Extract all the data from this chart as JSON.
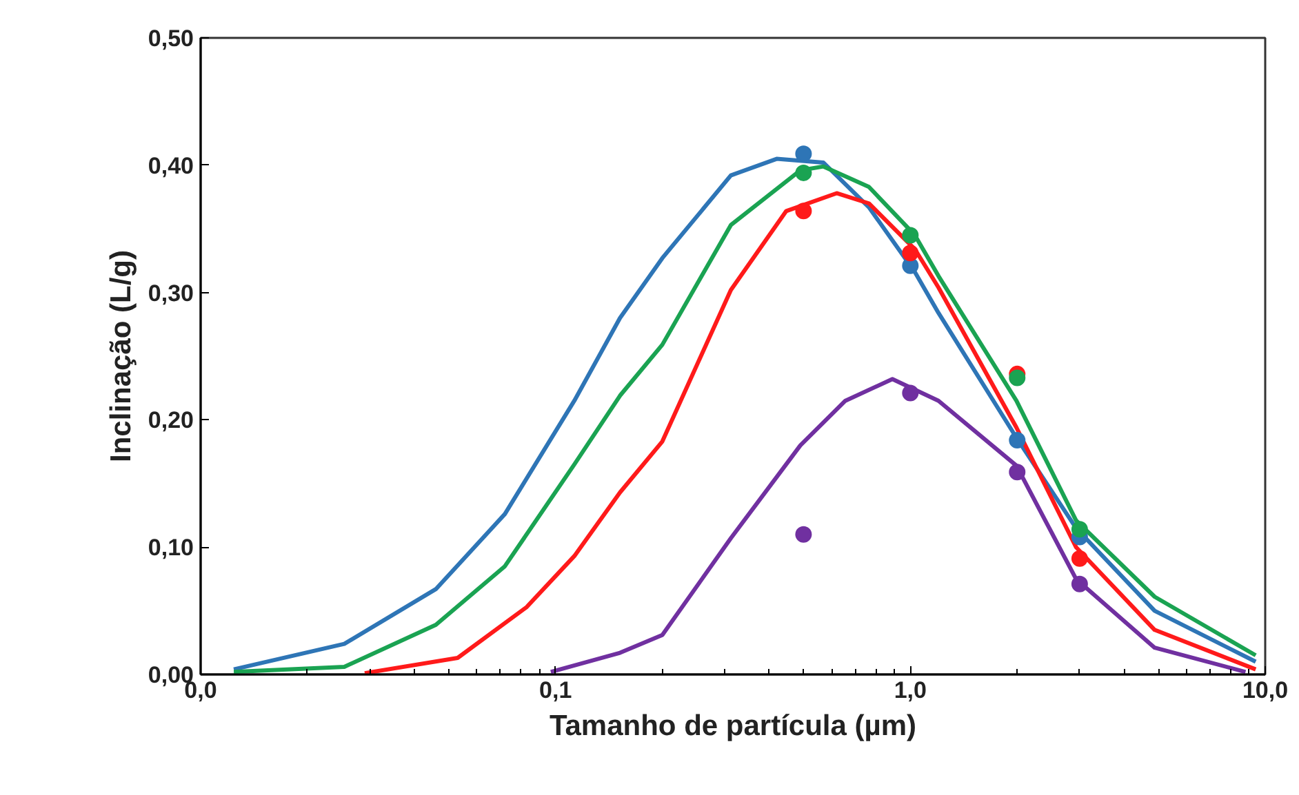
{
  "chart_data": {
    "type": "scatter",
    "xlabel": "Tamanho de partícula (µm)",
    "ylabel": "Inclinação (L/g)",
    "log": "x",
    "grid": false,
    "marker": "circle",
    "xlim": [
      0.01,
      10
    ],
    "xticks": [
      {
        "value": 0.01,
        "label": "0,0"
      },
      {
        "value": 0.1,
        "label": "0,1"
      },
      {
        "value": 1,
        "label": "1,0"
      },
      {
        "value": 10,
        "label": "10,0"
      }
    ],
    "ylim": [
      0,
      0.5
    ],
    "yticks": [
      {
        "value": 0,
        "label": "0,00"
      },
      {
        "value": 0.1,
        "label": "0,10"
      },
      {
        "value": 0.2,
        "label": "0,20"
      },
      {
        "value": 0.3,
        "label": "0,30"
      },
      {
        "value": 0.4,
        "label": "0,40"
      },
      {
        "value": 0.5,
        "label": "0,50"
      }
    ],
    "series": [
      {
        "type": "line",
        "color": "#2e75b6",
        "marker": "none",
        "line_style": "solid",
        "x": [
          0.0124,
          0.0254,
          0.046,
          0.072,
          0.113,
          0.152,
          0.2,
          0.312,
          0.42,
          0.569,
          0.764,
          1.03,
          1.2,
          1.99,
          2.93,
          4.88,
          9.4
        ],
        "values": [
          0.004,
          0.024,
          0.067,
          0.126,
          0.215,
          0.28,
          0.327,
          0.392,
          0.405,
          0.402,
          0.367,
          0.316,
          0.284,
          0.186,
          0.115,
          0.05,
          0.01
        ]
      },
      {
        "type": "line",
        "color": "#1aa352",
        "marker": "none",
        "line_style": "solid",
        "x": [
          0.0124,
          0.0254,
          0.046,
          0.072,
          0.113,
          0.152,
          0.2,
          0.312,
          0.49,
          0.569,
          0.764,
          1.03,
          1.2,
          1.99,
          2.93,
          4.88,
          9.4
        ],
        "values": [
          0.002,
          0.006,
          0.039,
          0.085,
          0.165,
          0.219,
          0.259,
          0.353,
          0.396,
          0.399,
          0.383,
          0.345,
          0.313,
          0.215,
          0.121,
          0.061,
          0.015
        ]
      },
      {
        "type": "line",
        "color": "#ff1a1a",
        "marker": "none",
        "line_style": "solid",
        "x": [
          0.029,
          0.053,
          0.083,
          0.113,
          0.152,
          0.2,
          0.312,
          0.447,
          0.62,
          0.764,
          1.03,
          1.2,
          1.99,
          2.93,
          4.88,
          9.4
        ],
        "values": [
          0.001,
          0.013,
          0.053,
          0.093,
          0.143,
          0.183,
          0.302,
          0.364,
          0.378,
          0.37,
          0.334,
          0.304,
          0.194,
          0.1,
          0.035,
          0.004
        ]
      },
      {
        "type": "line",
        "color": "#7030a0",
        "marker": "none",
        "line_style": "solid",
        "x": [
          0.097,
          0.152,
          0.2,
          0.312,
          0.49,
          0.656,
          0.89,
          1.2,
          1.99,
          2.93,
          4.88,
          8.8
        ],
        "values": [
          0.002,
          0.017,
          0.031,
          0.107,
          0.18,
          0.215,
          0.232,
          0.215,
          0.164,
          0.075,
          0.021,
          0.002
        ]
      },
      {
        "color": "#2e75b6",
        "x": [
          0.5,
          1,
          2,
          3
        ],
        "values": [
          0.409,
          0.321,
          0.184,
          0.108
        ]
      },
      {
        "color": "#ff1a1a",
        "x": [
          0.5,
          1,
          2,
          3
        ],
        "values": [
          0.364,
          0.331,
          0.236,
          0.091
        ]
      },
      {
        "color": "#1aa352",
        "x": [
          0.5,
          1,
          2,
          3
        ],
        "values": [
          0.394,
          0.345,
          0.233,
          0.114
        ]
      },
      {
        "color": "#7030a0",
        "x": [
          0.5,
          1,
          2,
          3
        ],
        "values": [
          0.11,
          0.221,
          0.159,
          0.071
        ]
      }
    ]
  }
}
